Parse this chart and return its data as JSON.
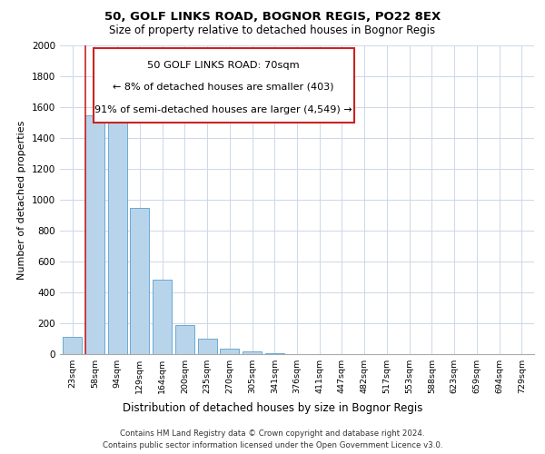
{
  "title": "50, GOLF LINKS ROAD, BOGNOR REGIS, PO22 8EX",
  "subtitle": "Size of property relative to detached houses in Bognor Regis",
  "xlabel": "Distribution of detached houses by size in Bognor Regis",
  "ylabel": "Number of detached properties",
  "bar_labels": [
    "23sqm",
    "58sqm",
    "94sqm",
    "129sqm",
    "164sqm",
    "200sqm",
    "235sqm",
    "270sqm",
    "305sqm",
    "341sqm",
    "376sqm",
    "411sqm",
    "447sqm",
    "482sqm",
    "517sqm",
    "553sqm",
    "588sqm",
    "623sqm",
    "659sqm",
    "694sqm",
    "729sqm"
  ],
  "bar_values": [
    110,
    1545,
    1570,
    950,
    485,
    190,
    100,
    35,
    15,
    5,
    2,
    1,
    0,
    0,
    0,
    0,
    0,
    0,
    0,
    0,
    0
  ],
  "bar_color": "#b8d4eb",
  "bar_edge_color": "#6aaad4",
  "ylim": [
    0,
    2000
  ],
  "yticks": [
    0,
    200,
    400,
    600,
    800,
    1000,
    1200,
    1400,
    1600,
    1800,
    2000
  ],
  "vline_color": "#cc2222",
  "annotation_title": "50 GOLF LINKS ROAD: 70sqm",
  "annotation_line1": "← 8% of detached houses are smaller (403)",
  "annotation_line2": "91% of semi-detached houses are larger (4,549) →",
  "footer_line1": "Contains HM Land Registry data © Crown copyright and database right 2024.",
  "footer_line2": "Contains public sector information licensed under the Open Government Licence v3.0.",
  "background_color": "#ffffff",
  "grid_color": "#ccd8e8"
}
